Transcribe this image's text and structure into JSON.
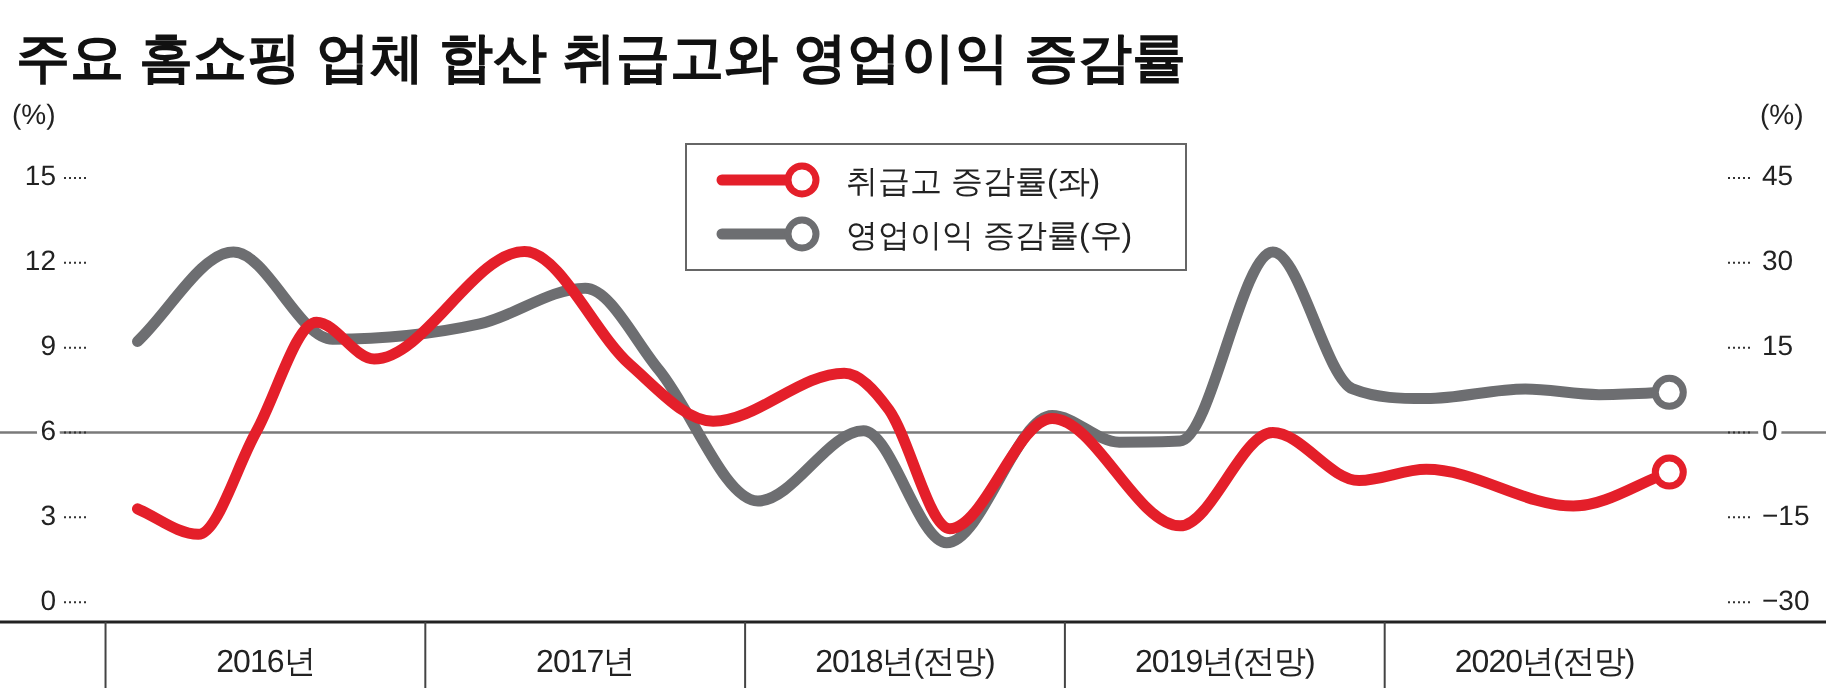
{
  "chart_data": {
    "type": "line",
    "title": "주요 홈쇼핑 업체 합산 취급고와 영업이익 증감률",
    "ylabel": "(%)",
    "y2label": "(%)",
    "xlim": [
      2015.67,
      2021.38
    ],
    "xticks": [
      {
        "value": 2016.5,
        "label": "2016년"
      },
      {
        "value": 2017.5,
        "label": "2017년"
      },
      {
        "value": 2018.5,
        "label": "2018년(전망)"
      },
      {
        "value": 2019.5,
        "label": "2019년(전망)"
      },
      {
        "value": 2020.5,
        "label": "2020년(전망)"
      }
    ],
    "ylim": [
      -0.7,
      15
    ],
    "yticks": [
      0,
      3,
      6,
      9,
      12,
      15
    ],
    "y2lim": [
      -33.5,
      45
    ],
    "y2ticks": [
      {
        "value": -30,
        "label": "−30"
      },
      {
        "value": -15,
        "label": "−15"
      },
      0,
      15,
      30,
      45
    ],
    "ref_lines": [
      {
        "axis": "y2",
        "value": 0,
        "color": "#7a7a7a"
      }
    ],
    "legend": "top",
    "line_style": "solid",
    "grid": false,
    "series": [
      {
        "name": "취급고 증감률(좌)",
        "color": "#e41f2a",
        "x": [
          2016.1,
          2016.29,
          2016.47,
          2016.66,
          2016.84,
          2017.31,
          2017.64,
          2017.9,
          2018.31,
          2018.45,
          2018.64,
          2018.96,
          2019.36,
          2019.65,
          2019.92,
          2020.13,
          2020.59,
          2020.89
        ],
        "values": [
          3.3,
          2.4,
          6.0,
          9.9,
          8.6,
          12.4,
          8.4,
          6.4,
          8.1,
          6.8,
          2.6,
          6.5,
          2.7,
          6.0,
          4.3,
          4.7,
          3.4,
          4.6
        ]
      },
      {
        "name": "영업이익 증감률(우)",
        "color": "#6d6e71",
        "axis": "y2",
        "x": [
          2016.1,
          2016.4,
          2016.71,
          2017.17,
          2017.5,
          2017.73,
          2018.04,
          2018.37,
          2018.63,
          2018.96,
          2019.17,
          2019.36,
          2019.65,
          2019.9,
          2020.13,
          2020.44,
          2020.67,
          2020.89
        ],
        "values": [
          16.1,
          31.9,
          16.5,
          19.2,
          25.5,
          11.1,
          -12.1,
          0.3,
          -19.5,
          3.0,
          -1.7,
          -1.5,
          31.9,
          7.7,
          6.0,
          7.7,
          6.7,
          7.1
        ]
      }
    ]
  }
}
